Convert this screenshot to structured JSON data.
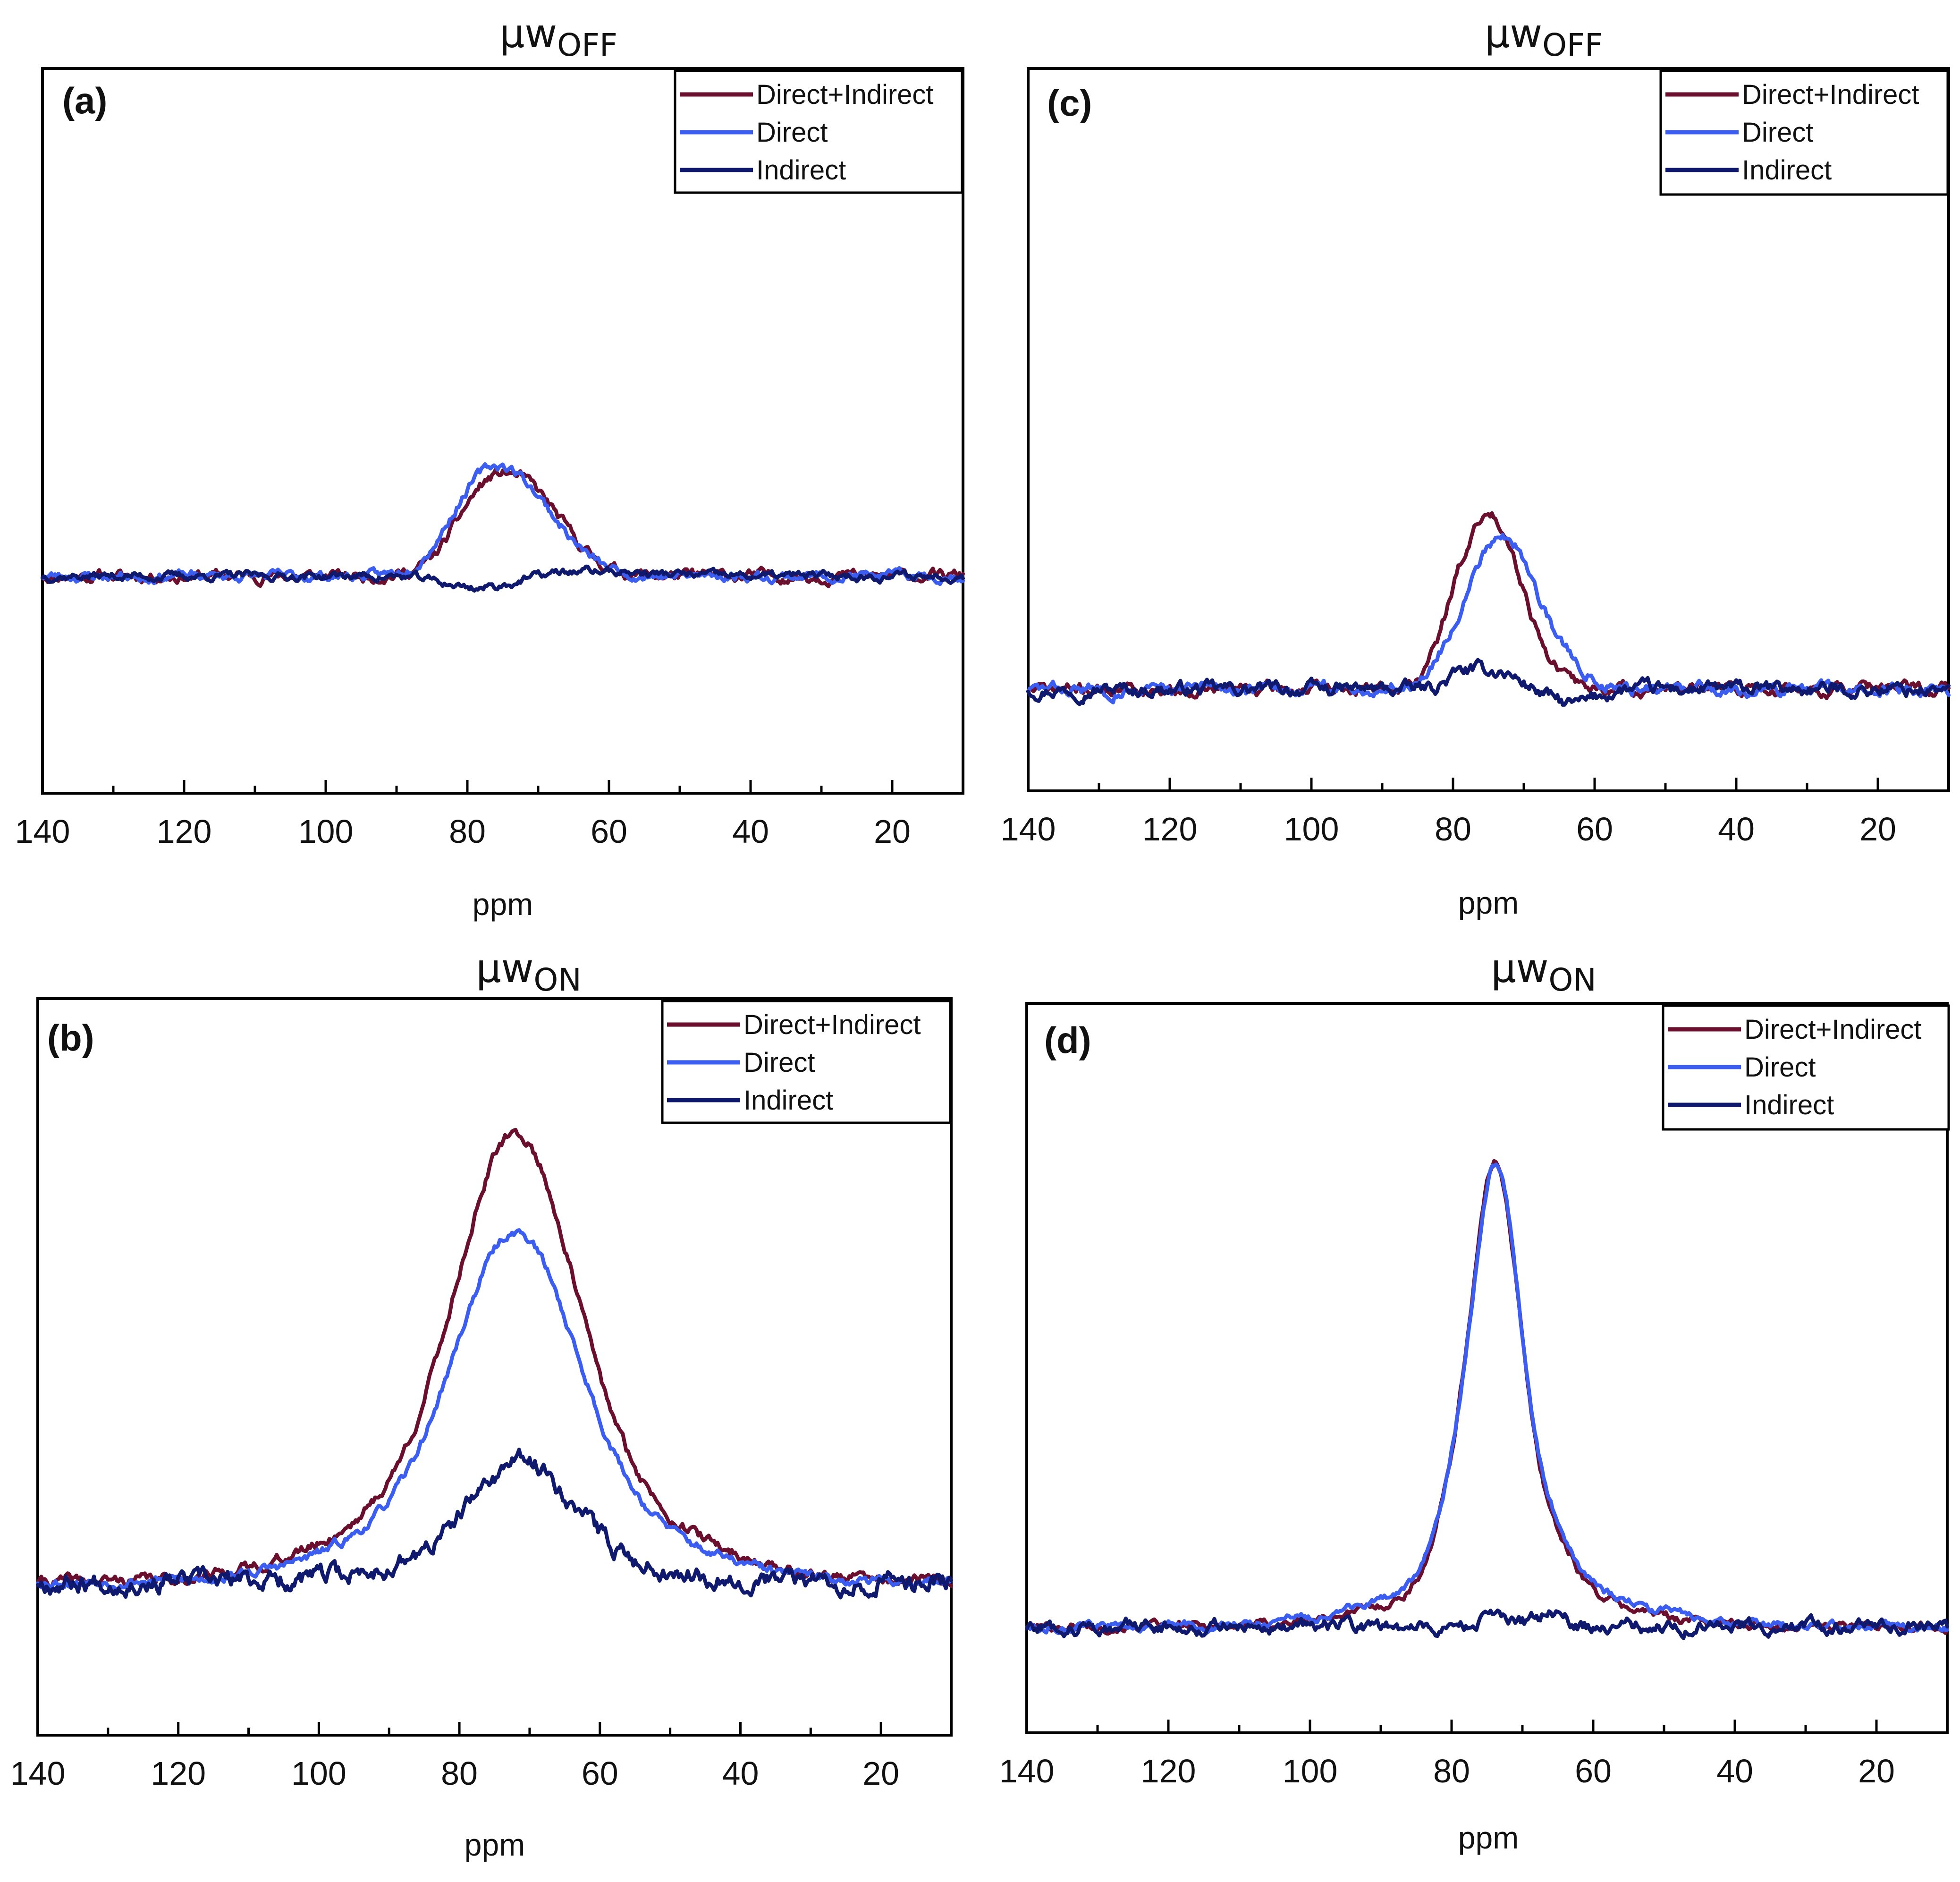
{
  "colors": {
    "direct_indirect": "#6b0f2e",
    "direct": "#3b5ef0",
    "indirect": "#0f1a6e"
  },
  "chart_data": [
    {
      "panel": "(a)",
      "title": {
        "base": "μw",
        "sub": "OFF"
      },
      "type": "line",
      "xlabel": "ppm",
      "xlim": [
        140,
        10
      ],
      "xticks": [
        "140",
        "120",
        "100",
        "80",
        "60",
        "40",
        "20"
      ],
      "ylim": [
        -0.2,
        1.0
      ],
      "legend": [
        "Direct+Indirect",
        "Direct",
        "Indirect"
      ],
      "legend_position": "top-right",
      "series": [
        {
          "name": "Direct+Indirect",
          "key": "direct_indirect",
          "noise": 0.008,
          "seed": 11,
          "components": [
            {
              "center": 73,
              "amp": 0.19,
              "width": 6
            },
            {
              "center": 79,
              "amp": 0.05,
              "width": 3.5
            }
          ]
        },
        {
          "name": "Direct",
          "key": "direct",
          "noise": 0.007,
          "seed": 23,
          "components": [
            {
              "center": 73,
              "amp": 0.17,
              "width": 6
            },
            {
              "center": 79,
              "amp": 0.09,
              "width": 4.5
            }
          ]
        },
        {
          "name": "Indirect",
          "key": "indirect",
          "noise": 0.006,
          "seed": 37,
          "components": [
            {
              "center": 78,
              "amp": -0.025,
              "width": 5
            },
            {
              "center": 63,
              "amp": 0.01,
              "width": 8
            }
          ]
        }
      ]
    },
    {
      "panel": "(b)",
      "title": {
        "base": "μw",
        "sub": "ON"
      },
      "type": "line",
      "xlabel": "ppm",
      "xlim": [
        140,
        10
      ],
      "xticks": [
        "140",
        "120",
        "100",
        "80",
        "60",
        "40",
        "20"
      ],
      "ylim": [
        -0.2,
        1.0
      ],
      "legend": [
        "Direct+Indirect",
        "Direct",
        "Indirect"
      ],
      "legend_position": "top-right",
      "series": [
        {
          "name": "Direct+Indirect",
          "key": "direct_indirect",
          "noise": 0.007,
          "seed": 41,
          "components": [
            {
              "center": 72,
              "amp": 0.56,
              "width": 8
            },
            {
              "center": 72,
              "amp": 0.22,
              "width": 18
            }
          ]
        },
        {
          "name": "Direct",
          "key": "direct",
          "noise": 0.006,
          "seed": 53,
          "components": [
            {
              "center": 72,
              "amp": 0.42,
              "width": 8
            },
            {
              "center": 72,
              "amp": 0.19,
              "width": 17
            }
          ]
        },
        {
          "name": "Indirect",
          "key": "indirect",
          "noise": 0.012,
          "seed": 67,
          "components": [
            {
              "center": 71,
              "amp": 0.16,
              "width": 7
            },
            {
              "center": 71,
              "amp": 0.05,
              "width": 15
            }
          ]
        }
      ]
    },
    {
      "panel": "(c)",
      "title": {
        "base": "μw",
        "sub": "OFF"
      },
      "type": "line",
      "xlabel": "ppm",
      "xlim": [
        140,
        10
      ],
      "xticks": [
        "140",
        "120",
        "100",
        "80",
        "60",
        "40",
        "20"
      ],
      "ylim": [
        -0.2,
        1.0
      ],
      "legend": [
        "Direct+Indirect",
        "Direct",
        "Indirect"
      ],
      "legend_position": "top-right",
      "series": [
        {
          "name": "Direct+Indirect",
          "key": "direct_indirect",
          "noise": 0.007,
          "seed": 71,
          "components": [
            {
              "center": 74,
              "amp": 0.22,
              "width": 3.5
            },
            {
              "center": 79,
              "amp": 0.12,
              "width": 3
            },
            {
              "center": 70,
              "amp": 0.05,
              "width": 4
            }
          ]
        },
        {
          "name": "Direct",
          "key": "direct",
          "noise": 0.007,
          "seed": 83,
          "components": [
            {
              "center": 73,
              "amp": 0.18,
              "width": 4
            },
            {
              "center": 78,
              "amp": 0.07,
              "width": 4
            },
            {
              "center": 68,
              "amp": 0.07,
              "width": 5
            }
          ]
        },
        {
          "name": "Indirect",
          "key": "indirect",
          "noise": 0.008,
          "seed": 97,
          "components": [
            {
              "center": 74,
              "amp": 0.03,
              "width": 3
            },
            {
              "center": 79,
              "amp": 0.02,
              "width": 2
            },
            {
              "center": 63,
              "amp": -0.025,
              "width": 3
            }
          ]
        }
      ]
    },
    {
      "panel": "(d)",
      "title": {
        "base": "μw",
        "sub": "ON"
      },
      "type": "line",
      "xlabel": "ppm",
      "xlim": [
        140,
        10
      ],
      "xticks": [
        "140",
        "120",
        "100",
        "80",
        "60",
        "40",
        "20"
      ],
      "ylim": [
        -0.2,
        1.0
      ],
      "legend": [
        "Direct+Indirect",
        "Direct",
        "Indirect"
      ],
      "legend_position": "top-right",
      "series": [
        {
          "name": "Direct+Indirect",
          "key": "direct_indirect",
          "noise": 0.005,
          "seed": 101,
          "components": [
            {
              "center": 73.5,
              "amp": 0.55,
              "width": 3
            },
            {
              "center": 78,
              "amp": 0.2,
              "width": 3.5
            },
            {
              "center": 68,
              "amp": 0.12,
              "width": 4
            },
            {
              "center": 73,
              "amp": 0.07,
              "width": 14
            }
          ]
        },
        {
          "name": "Direct",
          "key": "direct",
          "noise": 0.005,
          "seed": 113,
          "components": [
            {
              "center": 73.5,
              "amp": 0.54,
              "width": 3
            },
            {
              "center": 78,
              "amp": 0.19,
              "width": 3.5
            },
            {
              "center": 68,
              "amp": 0.12,
              "width": 4
            },
            {
              "center": 73,
              "amp": 0.08,
              "width": 15
            }
          ]
        },
        {
          "name": "Indirect",
          "key": "indirect",
          "noise": 0.008,
          "seed": 127,
          "components": [
            {
              "center": 66,
              "amp": 0.02,
              "width": 2
            },
            {
              "center": 74,
              "amp": 0.012,
              "width": 2
            }
          ]
        }
      ]
    }
  ]
}
